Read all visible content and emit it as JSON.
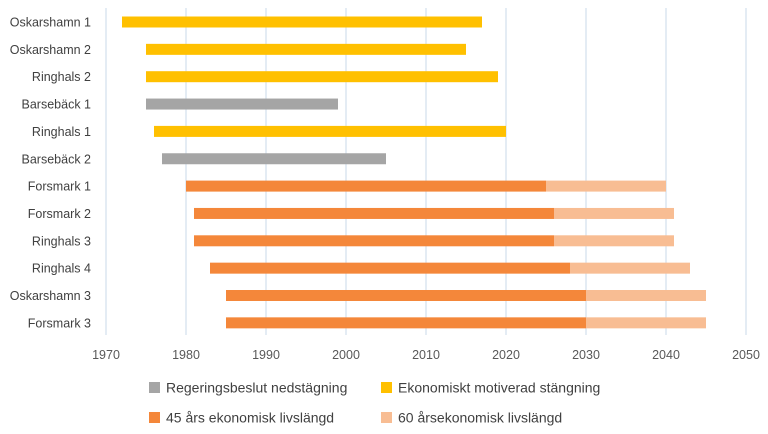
{
  "chart_data": {
    "type": "bar",
    "orientation": "horizontal",
    "stacked": true,
    "title": "",
    "xlabel": "",
    "ylabel": "",
    "xlim": [
      1970,
      2050
    ],
    "xticks": [
      "1970",
      "1980",
      "1990",
      "2000",
      "2010",
      "2020",
      "2030",
      "2040",
      "2050"
    ],
    "grid": "vertical",
    "legend_position": "bottom",
    "legend": [
      {
        "key": "gov",
        "label": "Regeringsbeslut nedstägning",
        "color": "#a5a5a5"
      },
      {
        "key": "eco",
        "label": "Ekonomiskt motiverad stängning",
        "color": "#ffc000"
      },
      {
        "key": "y45",
        "label": "45 års ekonomisk livslängd",
        "color": "#f4873a"
      },
      {
        "key": "y60",
        "label": "60 årsekonomisk livslängd",
        "color": "#f8bd93"
      }
    ],
    "categories": [
      "Oskarshamn 1",
      "Oskarshamn 2",
      "Ringhals 2",
      "Barsebäck 1",
      "Ringhals 1",
      "Barsebäck 2",
      "Forsmark 1",
      "Forsmark 2",
      "Ringhals 3",
      "Ringhals 4",
      "Oskarshamn 3",
      "Forsmark 3"
    ],
    "rows": [
      {
        "start": 1972,
        "segments": [
          {
            "series": "eco",
            "end": 2017
          }
        ]
      },
      {
        "start": 1975,
        "segments": [
          {
            "series": "eco",
            "end": 2015
          }
        ]
      },
      {
        "start": 1975,
        "segments": [
          {
            "series": "eco",
            "end": 2019
          }
        ]
      },
      {
        "start": 1975,
        "segments": [
          {
            "series": "gov",
            "end": 1999
          }
        ]
      },
      {
        "start": 1976,
        "segments": [
          {
            "series": "eco",
            "end": 2020
          }
        ]
      },
      {
        "start": 1977,
        "segments": [
          {
            "series": "gov",
            "end": 2005
          }
        ]
      },
      {
        "start": 1980,
        "segments": [
          {
            "series": "y45",
            "end": 2025
          },
          {
            "series": "y60",
            "end": 2040
          }
        ]
      },
      {
        "start": 1981,
        "segments": [
          {
            "series": "y45",
            "end": 2026
          },
          {
            "series": "y60",
            "end": 2041
          }
        ]
      },
      {
        "start": 1981,
        "segments": [
          {
            "series": "y45",
            "end": 2026
          },
          {
            "series": "y60",
            "end": 2041
          }
        ]
      },
      {
        "start": 1983,
        "segments": [
          {
            "series": "y45",
            "end": 2028
          },
          {
            "series": "y60",
            "end": 2043
          }
        ]
      },
      {
        "start": 1985,
        "segments": [
          {
            "series": "y45",
            "end": 2030
          },
          {
            "series": "y60",
            "end": 2045
          }
        ]
      },
      {
        "start": 1985,
        "segments": [
          {
            "series": "y45",
            "end": 2030
          },
          {
            "series": "y60",
            "end": 2045
          }
        ]
      }
    ]
  }
}
